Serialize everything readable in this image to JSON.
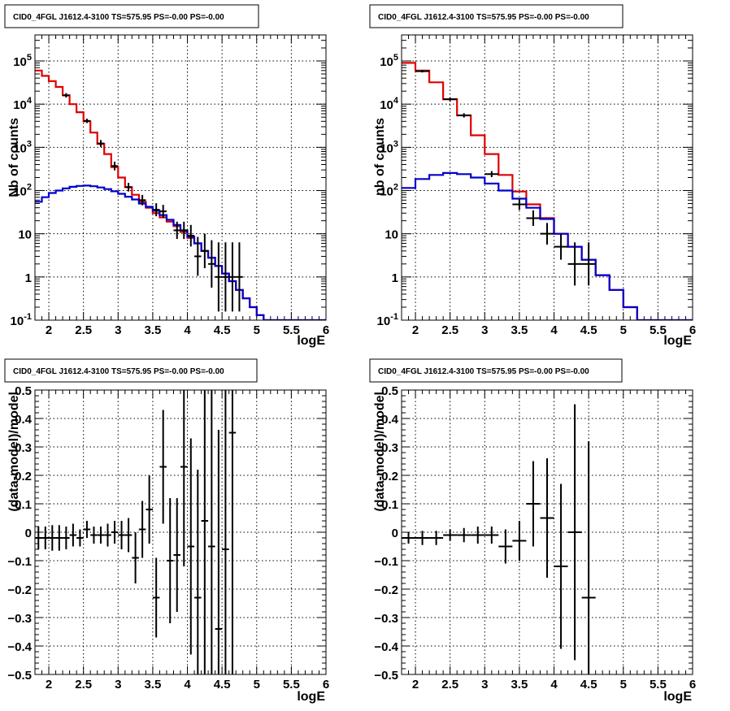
{
  "chart_data": [
    {
      "id": "top-left",
      "type": "line",
      "title": "CID0_4FGL J1612.4-3100 TS=575.95 PS=-0.00 PS=-0.00",
      "xlabel": "logE",
      "ylabel": "Nb of counts",
      "xlim": [
        1.8,
        6.0
      ],
      "ylim": [
        0.1,
        400000
      ],
      "yscale": "log",
      "grid": true,
      "xticks": [
        "2",
        "2.5",
        "3",
        "3.5",
        "4",
        "4.5",
        "5",
        "5.5",
        "6"
      ],
      "yticks": [
        "10^-1",
        "1",
        "10",
        "10^2",
        "10^3",
        "10^4",
        "10^5"
      ],
      "series": [
        {
          "color": "#e00000",
          "style": "step",
          "bin_edges": [
            1.8,
            1.9,
            2.0,
            2.1,
            2.2,
            2.3,
            2.4,
            2.5,
            2.6,
            2.7,
            2.8,
            2.9,
            3.0,
            3.1,
            3.2,
            3.3,
            3.4,
            3.5,
            3.6,
            3.7,
            3.8,
            3.9,
            4.0,
            4.1,
            4.2,
            4.3,
            4.4,
            4.5,
            4.6,
            4.7,
            4.8,
            4.9,
            5.0,
            5.1,
            6.0
          ],
          "values": [
            60000,
            45000,
            34000,
            25000,
            16000,
            10000,
            6500,
            4000,
            2200,
            1200,
            700,
            350,
            200,
            120,
            80,
            55,
            40,
            30,
            24,
            19,
            15,
            11,
            8,
            6,
            4,
            2.8,
            1.8,
            1.2,
            0.8,
            0.5,
            0.32,
            0.2,
            0.13,
            0.1
          ]
        },
        {
          "color": "#0000cc",
          "style": "step",
          "bin_edges": [
            1.8,
            1.9,
            2.0,
            2.1,
            2.2,
            2.3,
            2.4,
            2.5,
            2.6,
            2.7,
            2.8,
            2.9,
            3.0,
            3.1,
            3.2,
            3.3,
            3.4,
            3.5,
            3.6,
            3.7,
            3.8,
            3.9,
            4.0,
            4.1,
            4.2,
            4.3,
            4.4,
            4.5,
            4.6,
            4.7,
            4.8,
            4.9,
            5.0,
            5.1,
            6.0
          ],
          "values": [
            55,
            70,
            88,
            100,
            112,
            122,
            128,
            130,
            126,
            118,
            108,
            96,
            84,
            72,
            62,
            50,
            42,
            34,
            27,
            21,
            16,
            12,
            8.5,
            6,
            4,
            2.8,
            1.8,
            1.2,
            0.8,
            0.5,
            0.32,
            0.2,
            0.13,
            0.1
          ]
        },
        {
          "color": "#000000",
          "style": "errorbar",
          "points": [
            {
              "x": 2.25,
              "y": 16000,
              "xerr": 0.05,
              "yerr": 0.05
            },
            {
              "x": 2.55,
              "y": 4100,
              "xerr": 0.05,
              "yerr": 0.05
            },
            {
              "x": 2.75,
              "y": 1230,
              "xerr": 0.05,
              "yerr": 0.08
            },
            {
              "x": 2.95,
              "y": 370,
              "xerr": 0.05,
              "yerr": 0.1
            },
            {
              "x": 3.15,
              "y": 120,
              "xerr": 0.05,
              "yerr": 0.1
            },
            {
              "x": 3.35,
              "y": 60,
              "xerr": 0.05,
              "yerr": 0.12
            },
            {
              "x": 3.55,
              "y": 36,
              "xerr": 0.05,
              "yerr": 0.15
            },
            {
              "x": 3.65,
              "y": 33,
              "xerr": 0.05,
              "yerr": 0.15
            },
            {
              "x": 3.85,
              "y": 12,
              "xerr": 0.05,
              "yerr": 0.2
            },
            {
              "x": 3.95,
              "y": 12,
              "xerr": 0.05,
              "yerr": 0.2
            },
            {
              "x": 4.05,
              "y": 9,
              "xerr": 0.05,
              "yerr": 0.25
            },
            {
              "x": 4.15,
              "y": 3,
              "xerr": 0.05,
              "yerr": 0.45
            },
            {
              "x": 4.25,
              "y": 4,
              "xerr": 0.05,
              "yerr": 0.4
            },
            {
              "x": 4.35,
              "y": 2,
              "xerr": 0.05,
              "yerr": 0.55
            },
            {
              "x": 4.45,
              "y": 1,
              "xerr": 0.05,
              "yerr": 0.8
            },
            {
              "x": 4.55,
              "y": 1,
              "xerr": 0.05,
              "yerr": 0.8
            },
            {
              "x": 4.65,
              "y": 1,
              "xerr": 0.05,
              "yerr": 0.8
            },
            {
              "x": 4.75,
              "y": 1,
              "xerr": 0.05,
              "yerr": 0.8
            }
          ]
        }
      ]
    },
    {
      "id": "top-right",
      "type": "line",
      "title": "CID0_4FGL J1612.4-3100 TS=575.95 PS=-0.00 PS=-0.00",
      "xlabel": "logE",
      "ylabel": "nb of counts",
      "xlim": [
        1.8,
        6.0
      ],
      "ylim": [
        0.1,
        400000
      ],
      "yscale": "log",
      "grid": true,
      "xticks": [
        "2",
        "2.5",
        "3",
        "3.5",
        "4",
        "4.5",
        "5",
        "5.5",
        "6"
      ],
      "yticks": [
        "10^-1",
        "1",
        "10",
        "10^2",
        "10^3",
        "10^4",
        "10^5"
      ],
      "series": [
        {
          "color": "#e00000",
          "style": "step",
          "bin_edges": [
            1.8,
            2.0,
            2.2,
            2.4,
            2.6,
            2.8,
            3.0,
            3.2,
            3.4,
            3.6,
            3.8,
            4.0,
            4.2,
            4.4,
            4.6,
            4.8,
            5.0,
            5.2,
            6.0
          ],
          "values": [
            90000,
            60000,
            32000,
            13000,
            5500,
            1900,
            700,
            230,
            95,
            48,
            23,
            10,
            5,
            2.5,
            1.1,
            0.5,
            0.2,
            0.1
          ]
        },
        {
          "color": "#0000cc",
          "style": "step",
          "bin_edges": [
            1.8,
            2.0,
            2.2,
            2.4,
            2.6,
            2.8,
            3.0,
            3.2,
            3.4,
            3.6,
            3.8,
            4.0,
            4.2,
            4.4,
            4.6,
            4.8,
            5.0,
            5.2,
            6.0
          ],
          "values": [
            115,
            185,
            230,
            255,
            240,
            200,
            145,
            100,
            65,
            40,
            22,
            10,
            5,
            2.5,
            1.1,
            0.5,
            0.2,
            0.1
          ]
        },
        {
          "color": "#000000",
          "style": "errorbar",
          "points": [
            {
              "x": 2.1,
              "y": 58000,
              "xerr": 0.1,
              "yerr": 0.03
            },
            {
              "x": 2.5,
              "y": 13000,
              "xerr": 0.1,
              "yerr": 0.04
            },
            {
              "x": 2.7,
              "y": 5500,
              "xerr": 0.1,
              "yerr": 0.05
            },
            {
              "x": 3.1,
              "y": 240,
              "xerr": 0.1,
              "yerr": 0.07
            },
            {
              "x": 3.5,
              "y": 48,
              "xerr": 0.1,
              "yerr": 0.13
            },
            {
              "x": 3.7,
              "y": 23,
              "xerr": 0.1,
              "yerr": 0.18
            },
            {
              "x": 3.9,
              "y": 10,
              "xerr": 0.1,
              "yerr": 0.25
            },
            {
              "x": 4.1,
              "y": 5,
              "xerr": 0.1,
              "yerr": 0.3
            },
            {
              "x": 4.3,
              "y": 2,
              "xerr": 0.1,
              "yerr": 0.5
            },
            {
              "x": 4.5,
              "y": 2,
              "xerr": 0.1,
              "yerr": 0.5
            }
          ]
        }
      ]
    },
    {
      "id": "bottom-left",
      "type": "scatter",
      "title": "CID0_4FGL J1612.4-3100 TS=575.95 PS=-0.00 PS=-0.00",
      "xlabel": "logE",
      "ylabel": "(data-model)/model",
      "xlim": [
        1.8,
        6.0
      ],
      "ylim": [
        -0.5,
        0.5
      ],
      "yscale": "linear",
      "grid": true,
      "xticks": [
        "2",
        "2.5",
        "3",
        "3.5",
        "4",
        "4.5",
        "5",
        "5.5",
        "6"
      ],
      "yticks": [
        "−0.5",
        "−0.4",
        "−0.3",
        "−0.2",
        "−0.1",
        "0",
        "0.1",
        "0.2",
        "0.3",
        "0.4",
        "0.5"
      ],
      "series": [
        {
          "color": "#000000",
          "style": "errorbar",
          "points": [
            {
              "x": 1.85,
              "y": -0.02,
              "xerr": 0.05,
              "yerr": 0.04
            },
            {
              "x": 1.95,
              "y": -0.02,
              "xerr": 0.05,
              "yerr": 0.04
            },
            {
              "x": 2.05,
              "y": -0.02,
              "xerr": 0.05,
              "yerr": 0.045
            },
            {
              "x": 2.15,
              "y": -0.02,
              "xerr": 0.05,
              "yerr": 0.045
            },
            {
              "x": 2.25,
              "y": -0.02,
              "xerr": 0.05,
              "yerr": 0.04
            },
            {
              "x": 2.35,
              "y": -0.01,
              "xerr": 0.05,
              "yerr": 0.04
            },
            {
              "x": 2.45,
              "y": -0.02,
              "xerr": 0.05,
              "yerr": 0.03
            },
            {
              "x": 2.55,
              "y": 0.01,
              "xerr": 0.05,
              "yerr": 0.03
            },
            {
              "x": 2.65,
              "y": -0.01,
              "xerr": 0.05,
              "yerr": 0.03
            },
            {
              "x": 2.75,
              "y": -0.01,
              "xerr": 0.05,
              "yerr": 0.03
            },
            {
              "x": 2.85,
              "y": -0.01,
              "xerr": 0.05,
              "yerr": 0.04
            },
            {
              "x": 2.95,
              "y": 0.0,
              "xerr": 0.05,
              "yerr": 0.04
            },
            {
              "x": 3.05,
              "y": -0.01,
              "xerr": 0.05,
              "yerr": 0.05
            },
            {
              "x": 3.15,
              "y": -0.01,
              "xerr": 0.05,
              "yerr": 0.06
            },
            {
              "x": 3.25,
              "y": -0.09,
              "xerr": 0.05,
              "yerr": 0.09
            },
            {
              "x": 3.35,
              "y": 0.01,
              "xerr": 0.05,
              "yerr": 0.1
            },
            {
              "x": 3.45,
              "y": 0.08,
              "xerr": 0.05,
              "yerr": 0.12
            },
            {
              "x": 3.55,
              "y": -0.23,
              "xerr": 0.05,
              "yerr": 0.14
            },
            {
              "x": 3.65,
              "y": 0.23,
              "xerr": 0.05,
              "yerr": 0.2
            },
            {
              "x": 3.75,
              "y": -0.1,
              "xerr": 0.05,
              "yerr": 0.22
            },
            {
              "x": 3.85,
              "y": -0.08,
              "xerr": 0.05,
              "yerr": 0.2
            },
            {
              "x": 3.95,
              "y": 0.23,
              "xerr": 0.05,
              "yerr": 0.35
            },
            {
              "x": 4.05,
              "y": -0.05,
              "xerr": 0.05,
              "yerr": 0.38
            },
            {
              "x": 4.15,
              "y": -0.23,
              "xerr": 0.05,
              "yerr": 0.45
            },
            {
              "x": 4.25,
              "y": 0.04,
              "xerr": 0.05,
              "yerr": 0.55
            },
            {
              "x": 4.35,
              "y": -0.05,
              "xerr": 0.05,
              "yerr": 0.6
            },
            {
              "x": 4.45,
              "y": -0.34,
              "xerr": 0.05,
              "yerr": 0.7
            },
            {
              "x": 4.55,
              "y": -0.06,
              "xerr": 0.05,
              "yerr": 0.7
            },
            {
              "x": 4.65,
              "y": 0.35,
              "xerr": 0.05,
              "yerr": 0.9
            }
          ]
        }
      ]
    },
    {
      "id": "bottom-right",
      "type": "scatter",
      "title": "CID0_4FGL J1612.4-3100 TS=575.95 PS=-0.00 PS=-0.00",
      "xlabel": "logE",
      "ylabel": "(data-model)/model",
      "xlim": [
        1.8,
        6.0
      ],
      "ylim": [
        -0.5,
        0.5
      ],
      "yscale": "linear",
      "grid": true,
      "xticks": [
        "2",
        "2.5",
        "3",
        "3.5",
        "4",
        "4.5",
        "5",
        "5.5",
        "6"
      ],
      "yticks": [
        "−0.5",
        "−0.4",
        "−0.3",
        "−0.2",
        "−0.1",
        "0",
        "0.1",
        "0.2",
        "0.3",
        "0.4",
        "0.5"
      ],
      "series": [
        {
          "color": "#000000",
          "style": "errorbar",
          "points": [
            {
              "x": 1.9,
              "y": -0.02,
              "xerr": 0.1,
              "yerr": 0.02
            },
            {
              "x": 2.1,
              "y": -0.02,
              "xerr": 0.1,
              "yerr": 0.025
            },
            {
              "x": 2.3,
              "y": -0.02,
              "xerr": 0.1,
              "yerr": 0.025
            },
            {
              "x": 2.5,
              "y": -0.01,
              "xerr": 0.1,
              "yerr": 0.02
            },
            {
              "x": 2.7,
              "y": -0.01,
              "xerr": 0.1,
              "yerr": 0.025
            },
            {
              "x": 2.9,
              "y": -0.01,
              "xerr": 0.1,
              "yerr": 0.03
            },
            {
              "x": 3.1,
              "y": -0.01,
              "xerr": 0.1,
              "yerr": 0.03
            },
            {
              "x": 3.3,
              "y": -0.05,
              "xerr": 0.1,
              "yerr": 0.06
            },
            {
              "x": 3.5,
              "y": -0.03,
              "xerr": 0.1,
              "yerr": 0.07
            },
            {
              "x": 3.7,
              "y": 0.1,
              "xerr": 0.1,
              "yerr": 0.15
            },
            {
              "x": 3.9,
              "y": 0.05,
              "xerr": 0.1,
              "yerr": 0.21
            },
            {
              "x": 4.1,
              "y": -0.12,
              "xerr": 0.1,
              "yerr": 0.29
            },
            {
              "x": 4.3,
              "y": 0.0,
              "xerr": 0.1,
              "yerr": 0.45
            },
            {
              "x": 4.5,
              "y": -0.23,
              "xerr": 0.1,
              "yerr": 0.55
            }
          ]
        }
      ]
    }
  ]
}
